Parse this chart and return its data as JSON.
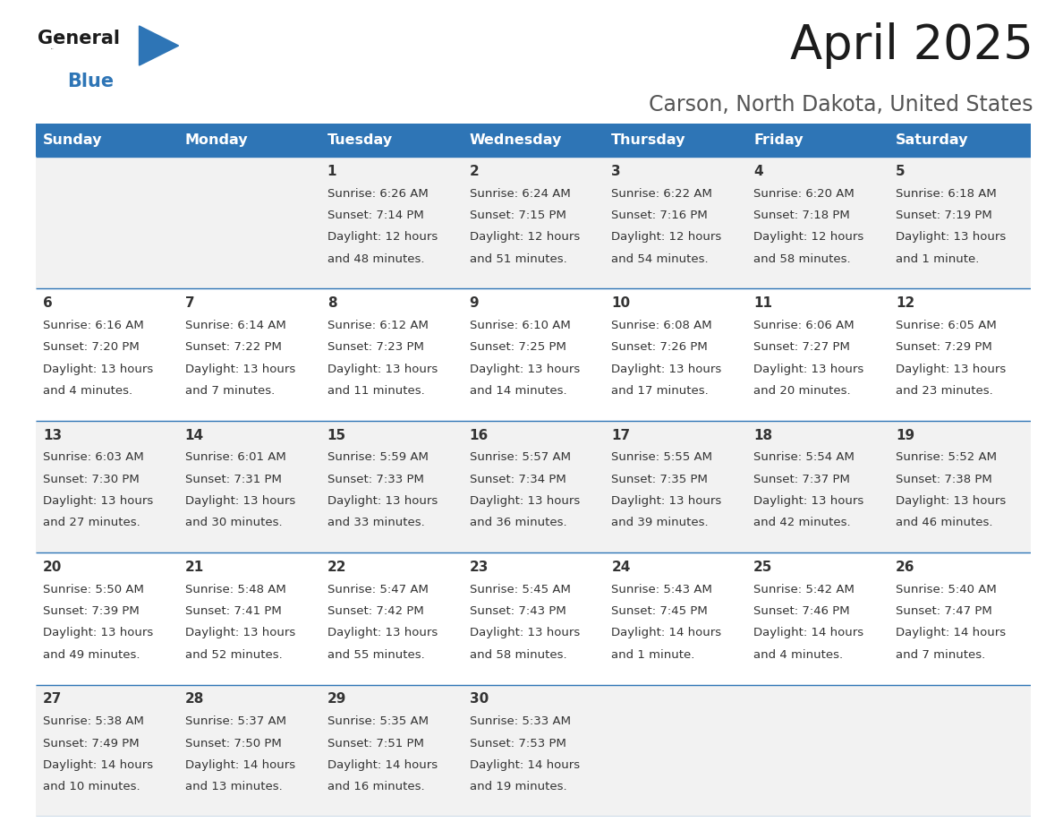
{
  "title": "April 2025",
  "subtitle": "Carson, North Dakota, United States",
  "header_bg": "#2E75B6",
  "header_text_color": "#FFFFFF",
  "row_bg_even": "#F2F2F2",
  "row_bg_odd": "#FFFFFF",
  "border_color": "#2E75B6",
  "text_color": "#333333",
  "day_headers": [
    "Sunday",
    "Monday",
    "Tuesday",
    "Wednesday",
    "Thursday",
    "Friday",
    "Saturday"
  ],
  "calendar_data": [
    [
      {
        "day": "",
        "sunrise": "",
        "sunset": "",
        "daylight": ""
      },
      {
        "day": "",
        "sunrise": "",
        "sunset": "",
        "daylight": ""
      },
      {
        "day": "1",
        "sunrise": "6:26 AM",
        "sunset": "7:14 PM",
        "daylight": "12 hours\nand 48 minutes."
      },
      {
        "day": "2",
        "sunrise": "6:24 AM",
        "sunset": "7:15 PM",
        "daylight": "12 hours\nand 51 minutes."
      },
      {
        "day": "3",
        "sunrise": "6:22 AM",
        "sunset": "7:16 PM",
        "daylight": "12 hours\nand 54 minutes."
      },
      {
        "day": "4",
        "sunrise": "6:20 AM",
        "sunset": "7:18 PM",
        "daylight": "12 hours\nand 58 minutes."
      },
      {
        "day": "5",
        "sunrise": "6:18 AM",
        "sunset": "7:19 PM",
        "daylight": "13 hours\nand 1 minute."
      }
    ],
    [
      {
        "day": "6",
        "sunrise": "6:16 AM",
        "sunset": "7:20 PM",
        "daylight": "13 hours\nand 4 minutes."
      },
      {
        "day": "7",
        "sunrise": "6:14 AM",
        "sunset": "7:22 PM",
        "daylight": "13 hours\nand 7 minutes."
      },
      {
        "day": "8",
        "sunrise": "6:12 AM",
        "sunset": "7:23 PM",
        "daylight": "13 hours\nand 11 minutes."
      },
      {
        "day": "9",
        "sunrise": "6:10 AM",
        "sunset": "7:25 PM",
        "daylight": "13 hours\nand 14 minutes."
      },
      {
        "day": "10",
        "sunrise": "6:08 AM",
        "sunset": "7:26 PM",
        "daylight": "13 hours\nand 17 minutes."
      },
      {
        "day": "11",
        "sunrise": "6:06 AM",
        "sunset": "7:27 PM",
        "daylight": "13 hours\nand 20 minutes."
      },
      {
        "day": "12",
        "sunrise": "6:05 AM",
        "sunset": "7:29 PM",
        "daylight": "13 hours\nand 23 minutes."
      }
    ],
    [
      {
        "day": "13",
        "sunrise": "6:03 AM",
        "sunset": "7:30 PM",
        "daylight": "13 hours\nand 27 minutes."
      },
      {
        "day": "14",
        "sunrise": "6:01 AM",
        "sunset": "7:31 PM",
        "daylight": "13 hours\nand 30 minutes."
      },
      {
        "day": "15",
        "sunrise": "5:59 AM",
        "sunset": "7:33 PM",
        "daylight": "13 hours\nand 33 minutes."
      },
      {
        "day": "16",
        "sunrise": "5:57 AM",
        "sunset": "7:34 PM",
        "daylight": "13 hours\nand 36 minutes."
      },
      {
        "day": "17",
        "sunrise": "5:55 AM",
        "sunset": "7:35 PM",
        "daylight": "13 hours\nand 39 minutes."
      },
      {
        "day": "18",
        "sunrise": "5:54 AM",
        "sunset": "7:37 PM",
        "daylight": "13 hours\nand 42 minutes."
      },
      {
        "day": "19",
        "sunrise": "5:52 AM",
        "sunset": "7:38 PM",
        "daylight": "13 hours\nand 46 minutes."
      }
    ],
    [
      {
        "day": "20",
        "sunrise": "5:50 AM",
        "sunset": "7:39 PM",
        "daylight": "13 hours\nand 49 minutes."
      },
      {
        "day": "21",
        "sunrise": "5:48 AM",
        "sunset": "7:41 PM",
        "daylight": "13 hours\nand 52 minutes."
      },
      {
        "day": "22",
        "sunrise": "5:47 AM",
        "sunset": "7:42 PM",
        "daylight": "13 hours\nand 55 minutes."
      },
      {
        "day": "23",
        "sunrise": "5:45 AM",
        "sunset": "7:43 PM",
        "daylight": "13 hours\nand 58 minutes."
      },
      {
        "day": "24",
        "sunrise": "5:43 AM",
        "sunset": "7:45 PM",
        "daylight": "14 hours\nand 1 minute."
      },
      {
        "day": "25",
        "sunrise": "5:42 AM",
        "sunset": "7:46 PM",
        "daylight": "14 hours\nand 4 minutes."
      },
      {
        "day": "26",
        "sunrise": "5:40 AM",
        "sunset": "7:47 PM",
        "daylight": "14 hours\nand 7 minutes."
      }
    ],
    [
      {
        "day": "27",
        "sunrise": "5:38 AM",
        "sunset": "7:49 PM",
        "daylight": "14 hours\nand 10 minutes."
      },
      {
        "day": "28",
        "sunrise": "5:37 AM",
        "sunset": "7:50 PM",
        "daylight": "14 hours\nand 13 minutes."
      },
      {
        "day": "29",
        "sunrise": "5:35 AM",
        "sunset": "7:51 PM",
        "daylight": "14 hours\nand 16 minutes."
      },
      {
        "day": "30",
        "sunrise": "5:33 AM",
        "sunset": "7:53 PM",
        "daylight": "14 hours\nand 19 minutes."
      },
      {
        "day": "",
        "sunrise": "",
        "sunset": "",
        "daylight": ""
      },
      {
        "day": "",
        "sunrise": "",
        "sunset": "",
        "daylight": ""
      },
      {
        "day": "",
        "sunrise": "",
        "sunset": "",
        "daylight": ""
      }
    ]
  ],
  "title_fontsize": 38,
  "subtitle_fontsize": 17,
  "header_fontsize": 11.5,
  "cell_day_fontsize": 11,
  "cell_info_fontsize": 9.5,
  "logo_general_fontsize": 15,
  "logo_blue_fontsize": 15
}
